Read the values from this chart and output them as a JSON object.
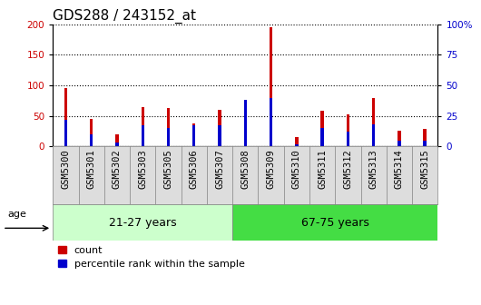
{
  "title": "GDS288 / 243152_at",
  "samples": [
    "GSM5300",
    "GSM5301",
    "GSM5302",
    "GSM5303",
    "GSM5305",
    "GSM5306",
    "GSM5307",
    "GSM5308",
    "GSM5309",
    "GSM5310",
    "GSM5311",
    "GSM5312",
    "GSM5313",
    "GSM5314",
    "GSM5315"
  ],
  "count_values": [
    95,
    45,
    20,
    65,
    63,
    37,
    60,
    65,
    196,
    15,
    58,
    53,
    79,
    25,
    29
  ],
  "percentile_values": [
    22,
    10,
    3,
    17,
    15,
    17,
    17,
    38,
    40,
    2,
    15,
    12,
    18,
    5,
    5
  ],
  "group1_label": "21-27 years",
  "group2_label": "67-75 years",
  "group1_count": 7,
  "group2_count": 8,
  "age_label": "age",
  "left_ylim": [
    0,
    200
  ],
  "right_ylim": [
    0,
    100
  ],
  "left_yticks": [
    0,
    50,
    100,
    150,
    200
  ],
  "right_yticks": [
    0,
    25,
    50,
    75,
    100
  ],
  "right_yticklabels": [
    "0",
    "25",
    "50",
    "75",
    "100%"
  ],
  "bar_color_count": "#cc0000",
  "bar_color_percentile": "#0000cc",
  "bar_width": 0.12,
  "group1_bg_light": "#ccffcc",
  "group2_bg_dark": "#44dd44",
  "tick_bg_color": "#dddddd",
  "title_fontsize": 11,
  "tick_fontsize": 7.5,
  "legend_fontsize": 8,
  "grid_color": "black",
  "grid_linestyle": "dotted",
  "left_ylabel_color": "#cc0000",
  "right_ylabel_color": "#0000cc"
}
